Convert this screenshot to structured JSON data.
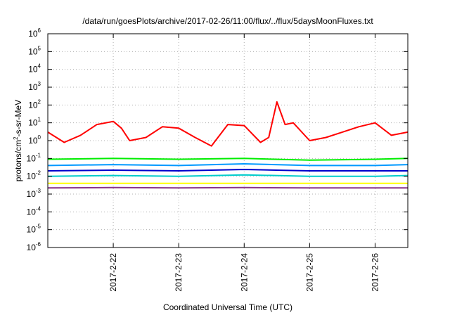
{
  "chart_data": {
    "type": "line",
    "title": "/data/run/goesPlots/archive/2017-02-26/11:00/flux/../flux/5daysMoonFluxes.txt",
    "xlabel": "Coordinated Universal Time (UTC)",
    "ylabel_parts": {
      "pre": "protons/cm",
      "sup": "2",
      "post": "-s-sr-MeV"
    },
    "y_scale": "log",
    "ylim": [
      1e-06,
      1000000.0
    ],
    "y_ticks": [
      {
        "base": "10",
        "exp": "-6"
      },
      {
        "base": "10",
        "exp": "-5"
      },
      {
        "base": "10",
        "exp": "-4"
      },
      {
        "base": "10",
        "exp": "-3"
      },
      {
        "base": "10",
        "exp": "-2"
      },
      {
        "base": "10",
        "exp": "-1"
      },
      {
        "base": "10",
        "exp": "0"
      },
      {
        "base": "10",
        "exp": "1"
      },
      {
        "base": "10",
        "exp": "2"
      },
      {
        "base": "10",
        "exp": "3"
      },
      {
        "base": "10",
        "exp": "4"
      },
      {
        "base": "10",
        "exp": "5"
      },
      {
        "base": "10",
        "exp": "6"
      }
    ],
    "xlim": [
      "2017-02-21 00:00",
      "2017-02-26 12:00"
    ],
    "x_ticks": [
      "2017-2-22",
      "2017-2-23",
      "2017-2-24",
      "2017-2-25",
      "2017-2-26"
    ],
    "grid": true,
    "series": [
      {
        "color": "#ff0000",
        "x": [
          "2017-02-21 00:00",
          "2017-02-21 06:00",
          "2017-02-21 12:00",
          "2017-02-21 18:00",
          "2017-02-22 00:00",
          "2017-02-22 03:00",
          "2017-02-22 06:00",
          "2017-02-22 12:00",
          "2017-02-22 18:00",
          "2017-02-23 00:00",
          "2017-02-23 06:00",
          "2017-02-23 12:00",
          "2017-02-23 18:00",
          "2017-02-24 00:00",
          "2017-02-24 06:00",
          "2017-02-24 09:00",
          "2017-02-24 12:00",
          "2017-02-24 15:00",
          "2017-02-24 18:00",
          "2017-02-25 00:00",
          "2017-02-25 06:00",
          "2017-02-25 12:00",
          "2017-02-25 18:00",
          "2017-02-26 00:00",
          "2017-02-26 06:00",
          "2017-02-26 12:00"
        ],
        "values": [
          3,
          0.8,
          2,
          8,
          12,
          5,
          1,
          1.5,
          6,
          5,
          1.5,
          0.5,
          8,
          7,
          0.8,
          1.5,
          150,
          8,
          10,
          1,
          1.5,
          3,
          6,
          10,
          2,
          3
        ]
      },
      {
        "color": "#00ee00",
        "x": [
          "2017-02-21 00:00",
          "2017-02-22 00:00",
          "2017-02-23 00:00",
          "2017-02-24 00:00",
          "2017-02-25 00:00",
          "2017-02-26 00:00",
          "2017-02-26 12:00"
        ],
        "values": [
          0.09,
          0.1,
          0.09,
          0.1,
          0.08,
          0.09,
          0.1
        ]
      },
      {
        "color": "#0099ff",
        "x": [
          "2017-02-21 00:00",
          "2017-02-22 00:00",
          "2017-02-23 00:00",
          "2017-02-24 00:00",
          "2017-02-25 00:00",
          "2017-02-26 00:00",
          "2017-02-26 12:00"
        ],
        "values": [
          0.04,
          0.045,
          0.04,
          0.05,
          0.04,
          0.04,
          0.045
        ]
      },
      {
        "color": "#0000cc",
        "x": [
          "2017-02-21 00:00",
          "2017-02-22 00:00",
          "2017-02-23 00:00",
          "2017-02-24 00:00",
          "2017-02-25 00:00",
          "2017-02-26 00:00",
          "2017-02-26 12:00"
        ],
        "values": [
          0.02,
          0.022,
          0.02,
          0.024,
          0.02,
          0.02,
          0.02
        ]
      },
      {
        "color": "#00cccc",
        "x": [
          "2017-02-21 00:00",
          "2017-02-22 00:00",
          "2017-02-23 00:00",
          "2017-02-24 00:00",
          "2017-02-25 00:00",
          "2017-02-26 00:00",
          "2017-02-26 12:00"
        ],
        "values": [
          0.01,
          0.011,
          0.01,
          0.012,
          0.01,
          0.01,
          0.011
        ]
      },
      {
        "color": "#ffff00",
        "x": [
          "2017-02-21 00:00",
          "2017-02-22 00:00",
          "2017-02-23 00:00",
          "2017-02-24 00:00",
          "2017-02-25 00:00",
          "2017-02-26 00:00",
          "2017-02-26 12:00"
        ],
        "values": [
          0.004,
          0.004,
          0.004,
          0.004,
          0.004,
          0.004,
          0.004
        ]
      },
      {
        "color": "#883388",
        "x": [
          "2017-02-21 00:00",
          "2017-02-22 00:00",
          "2017-02-23 00:00",
          "2017-02-24 00:00",
          "2017-02-25 00:00",
          "2017-02-26 00:00",
          "2017-02-26 12:00"
        ],
        "values": [
          0.0022,
          0.0023,
          0.0022,
          0.0023,
          0.0022,
          0.0022,
          0.0022
        ]
      }
    ]
  }
}
